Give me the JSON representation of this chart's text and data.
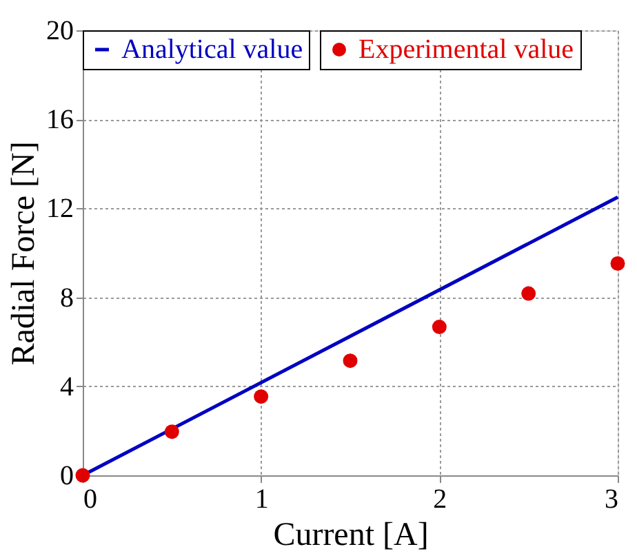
{
  "chart_data": {
    "type": "line",
    "xlabel": "Current [A]",
    "ylabel": "Radial Force [N]",
    "xlim": [
      0,
      3
    ],
    "ylim": [
      0,
      20
    ],
    "xticks": [
      0,
      1,
      2,
      3
    ],
    "yticks": [
      0,
      4,
      8,
      12,
      16,
      20
    ],
    "grid": true,
    "legend": "top left",
    "series": [
      {
        "name": "Analytical value",
        "color": "#0000c0",
        "x": [
          0,
          3
        ],
        "values": [
          0,
          12.5
        ],
        "marker": "none",
        "line_style": "solid"
      },
      {
        "name": "Experimental value",
        "type": "scatter",
        "color": "#e00000",
        "x": [
          0,
          0.5,
          1,
          1.5,
          2,
          2.5,
          3
        ],
        "values": [
          0,
          1.96,
          3.54,
          5.15,
          6.67,
          8.17,
          9.52
        ],
        "marker": "circle"
      }
    ]
  }
}
